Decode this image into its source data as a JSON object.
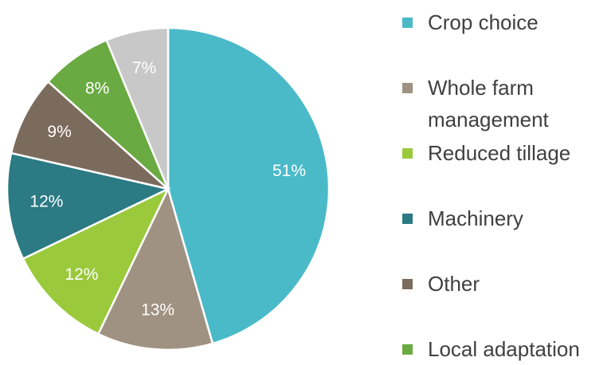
{
  "chart_data": {
    "type": "pie",
    "categories": [
      "Crop choice",
      "Whole farm management",
      "Reduced tillage",
      "Machinery",
      "Other",
      "Local adaptation",
      null
    ],
    "values": [
      51,
      13,
      12,
      12,
      9,
      8,
      7
    ],
    "value_labels": [
      "51%",
      "13%",
      "12%",
      "12%",
      "9%",
      "8%",
      "7%"
    ],
    "colors": [
      "#4bbac8",
      "#a09282",
      "#9ac93c",
      "#2b7a84",
      "#7b6b5d",
      "#6aaa42",
      "#c8c8c8"
    ],
    "legend": "right"
  }
}
